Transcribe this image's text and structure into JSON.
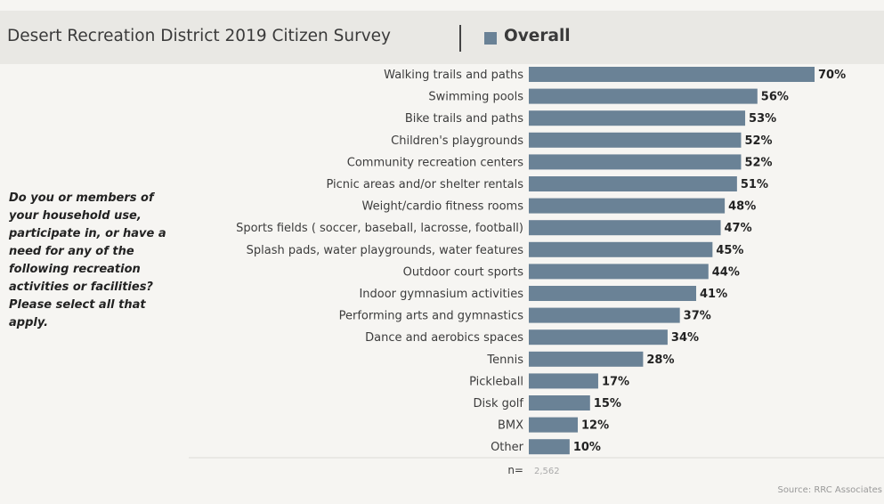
{
  "header": {
    "title": "Desert Recreation District 2019 Citizen Survey",
    "legend_label": "Overall",
    "legend_color": "#6a8296"
  },
  "question": "Do you or members of your household use, participate in, or have a need for any of the following recreation activities or facilities? Please select all that apply.",
  "source": "Source: RRC Associates",
  "chart_data": {
    "type": "bar",
    "orientation": "horizontal",
    "series": [
      {
        "name": "Overall",
        "color": "#6a8296",
        "values": [
          70,
          56,
          53,
          52,
          52,
          51,
          48,
          47,
          45,
          44,
          41,
          37,
          34,
          28,
          17,
          15,
          12,
          10
        ],
        "labels": [
          "70%",
          "56%",
          "53%",
          "52%",
          "52%",
          "51%",
          "48%",
          "47%",
          "45%",
          "44%",
          "41%",
          "37%",
          "34%",
          "28%",
          "17%",
          "15%",
          "12%",
          "10%"
        ]
      }
    ],
    "categories": [
      "Walking trails and paths",
      "Swimming pools",
      "Bike trails and paths",
      "Children's playgrounds",
      "Community recreation centers",
      "Picnic areas and/or shelter rentals",
      "Weight/cardio fitness rooms",
      "Sports fields ( soccer, baseball, lacrosse, football)",
      "Splash pads, water playgrounds, water features",
      "Outdoor court sports",
      "Indoor gymnasium activities",
      "Performing arts and gymnastics",
      "Dance and aerobics spaces",
      "Tennis",
      "Pickleball",
      "Disk golf",
      "BMX",
      "Other"
    ],
    "n_label": "n=",
    "n_value": "2,562",
    "xlim": [
      0,
      72
    ],
    "grid": false
  }
}
